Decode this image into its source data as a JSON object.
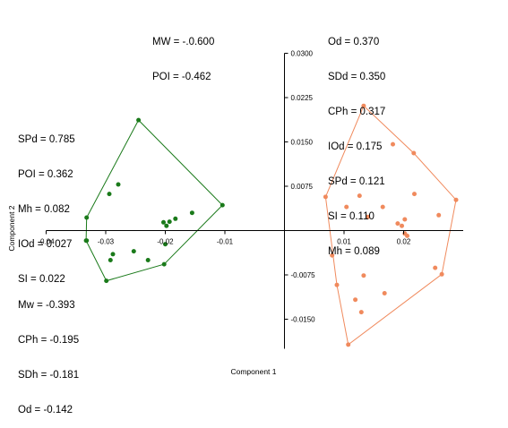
{
  "chart_data": {
    "type": "scatter",
    "title": "",
    "xlabel": "Component 1",
    "ylabel": "Component 2",
    "xlim": [
      -0.04,
      0.03
    ],
    "ylim": [
      -0.02,
      0.03
    ],
    "x_ticks": [
      {
        "value": -0.04,
        "label": "-0.04"
      },
      {
        "value": -0.03,
        "label": "-0.03"
      },
      {
        "value": -0.02,
        "label": "-0.02"
      },
      {
        "value": -0.01,
        "label": "-0.01"
      },
      {
        "value": 0.01,
        "label": "0.01"
      },
      {
        "value": 0.02,
        "label": "0.02"
      }
    ],
    "y_ticks": [
      {
        "value": 0.03,
        "label": "0.0300"
      },
      {
        "value": 0.0225,
        "label": "0.0225"
      },
      {
        "value": 0.015,
        "label": "0.0150"
      },
      {
        "value": 0.0075,
        "label": "0.0075"
      },
      {
        "value": -0.0075,
        "label": "-0.0075"
      },
      {
        "value": -0.015,
        "label": "-0.0150"
      }
    ],
    "grid": false,
    "series": [
      {
        "color": "#1a7a1a",
        "points": [
          [
            -0.0245,
            0.0187
          ],
          [
            -0.0279,
            0.0078
          ],
          [
            -0.0294,
            0.0062
          ],
          [
            -0.0332,
            0.0022
          ],
          [
            -0.0332,
            -0.0017
          ],
          [
            -0.0333,
            -0.0017
          ],
          [
            -0.0203,
            0.0014
          ],
          [
            -0.0193,
            0.0015
          ],
          [
            -0.0183,
            0.002
          ],
          [
            -0.0155,
            0.003
          ],
          [
            -0.0104,
            0.0043
          ],
          [
            -0.0198,
            0.0008
          ],
          [
            -0.02,
            -0.0023
          ],
          [
            -0.0253,
            -0.0035
          ],
          [
            -0.0288,
            -0.004
          ],
          [
            -0.0292,
            -0.005
          ],
          [
            -0.0229,
            -0.005
          ],
          [
            -0.0202,
            -0.0057
          ],
          [
            -0.0299,
            -0.0085
          ]
        ],
        "hull": [
          [
            -0.0245,
            0.0187
          ],
          [
            -0.0104,
            0.0043
          ],
          [
            -0.0202,
            -0.0057
          ],
          [
            -0.0299,
            -0.0085
          ],
          [
            -0.0333,
            -0.0017
          ],
          [
            -0.0332,
            0.0022
          ]
        ]
      },
      {
        "color": "#f08a5d",
        "points": [
          [
            0.0133,
            0.0211
          ],
          [
            0.0182,
            0.0146
          ],
          [
            0.0217,
            0.0131
          ],
          [
            0.0069,
            0.0057
          ],
          [
            0.0126,
            0.0059
          ],
          [
            0.0218,
            0.0062
          ],
          [
            0.0288,
            0.0052
          ],
          [
            0.0104,
            0.004
          ],
          [
            0.0165,
            0.004
          ],
          [
            0.014,
            0.0023
          ],
          [
            0.0259,
            0.0026
          ],
          [
            0.0202,
            0.0019
          ],
          [
            0.019,
            0.0012
          ],
          [
            0.0197,
            0.0008
          ],
          [
            0.0202,
            -0.0005
          ],
          [
            0.0206,
            -0.0009
          ],
          [
            0.008,
            -0.0042
          ],
          [
            0.0253,
            -0.0063
          ],
          [
            0.0264,
            -0.0074
          ],
          [
            0.0133,
            -0.0076
          ],
          [
            0.0088,
            -0.0092
          ],
          [
            0.0168,
            -0.0106
          ],
          [
            0.0119,
            -0.0117
          ],
          [
            0.0129,
            -0.0138
          ],
          [
            0.0107,
            -0.0193
          ]
        ],
        "hull": [
          [
            0.0133,
            0.0211
          ],
          [
            0.0217,
            0.0131
          ],
          [
            0.0288,
            0.0052
          ],
          [
            0.0264,
            -0.0074
          ],
          [
            0.0107,
            -0.0193
          ],
          [
            0.0088,
            -0.0092
          ],
          [
            0.0069,
            0.0057
          ]
        ]
      }
    ]
  },
  "annotations": {
    "top_center": [
      "MW = -.0.600",
      "POI = -0.462"
    ],
    "top_right": [
      "Od = 0.370",
      "SDd = 0.350",
      "CPh = 0.317",
      "IOd = 0.175",
      "SPd = 0.121",
      "SI = 0.110",
      "Mh = 0.089"
    ],
    "left_upper": [
      "SPd = 0.785",
      "POI = 0.362",
      "Mh = 0.082",
      "IOd = 0.027",
      "SI = 0.022"
    ],
    "left_lower": [
      "Mw = -0.393",
      "CPh = -0.195",
      "SDh = -0.181",
      "Od = -0.142"
    ]
  }
}
